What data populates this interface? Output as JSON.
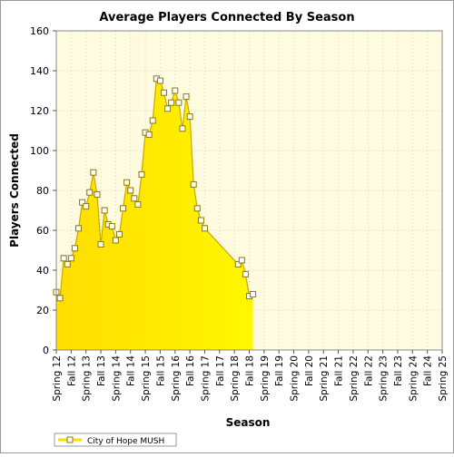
{
  "chart_data": {
    "type": "area",
    "title": "Average Players Connected By Season",
    "xlabel": "Season",
    "ylabel": "Players Connected",
    "ylim": [
      0,
      160
    ],
    "yticks": [
      0,
      20,
      40,
      60,
      80,
      100,
      120,
      140,
      160
    ],
    "categories": [
      "Spring 12",
      "Fall 12",
      "Spring 13",
      "Fall 13",
      "Spring 14",
      "Fall 14",
      "Spring 15",
      "Fall 15",
      "Spring 16",
      "Fall 16",
      "Spring 17",
      "Fall 17",
      "Spring 18",
      "Fall 18",
      "Spring 19",
      "Fall 19",
      "Spring 20",
      "Fall 20",
      "Spring 21",
      "Fall 21",
      "Spring 22",
      "Fall 22",
      "Spring 23",
      "Fall 23",
      "Spring 24",
      "Fall 24",
      "Spring 25"
    ],
    "grid": true,
    "legend_position": "bottom-left",
    "colors": {
      "fill": "#ffdd00",
      "fill_light": "#fff700",
      "line": "#c8a800",
      "marker_fill": "#ffffff",
      "marker_stroke": "#8a7a00",
      "plot_background": "#fffbe0",
      "grid": "#d8d4b0"
    },
    "series": [
      {
        "name": "City of Hope MUSH",
        "points": [
          [
            0.0,
            29
          ],
          [
            0.25,
            26
          ],
          [
            0.5,
            46
          ],
          [
            0.75,
            43
          ],
          [
            1.0,
            46
          ],
          [
            1.25,
            51
          ],
          [
            1.5,
            61
          ],
          [
            1.75,
            74
          ],
          [
            2.0,
            72
          ],
          [
            2.25,
            79
          ],
          [
            2.5,
            89
          ],
          [
            2.75,
            78
          ],
          [
            3.0,
            53
          ],
          [
            3.25,
            70
          ],
          [
            3.5,
            63
          ],
          [
            3.75,
            62
          ],
          [
            4.0,
            55
          ],
          [
            4.25,
            58
          ],
          [
            4.5,
            71
          ],
          [
            4.75,
            84
          ],
          [
            5.0,
            80
          ],
          [
            5.25,
            76
          ],
          [
            5.5,
            73
          ],
          [
            5.75,
            88
          ],
          [
            6.0,
            109
          ],
          [
            6.25,
            108
          ],
          [
            6.5,
            115
          ],
          [
            6.75,
            136
          ],
          [
            7.0,
            135
          ],
          [
            7.25,
            129
          ],
          [
            7.5,
            121
          ],
          [
            7.75,
            124
          ],
          [
            8.0,
            130
          ],
          [
            8.25,
            124
          ],
          [
            8.5,
            111
          ],
          [
            8.75,
            127
          ],
          [
            9.0,
            117
          ],
          [
            9.25,
            83
          ],
          [
            9.5,
            71
          ],
          [
            9.75,
            65
          ],
          [
            10.0,
            61
          ],
          [
            12.25,
            43
          ],
          [
            12.5,
            45
          ],
          [
            12.75,
            38
          ],
          [
            13.0,
            27
          ],
          [
            13.25,
            28
          ]
        ]
      }
    ]
  }
}
